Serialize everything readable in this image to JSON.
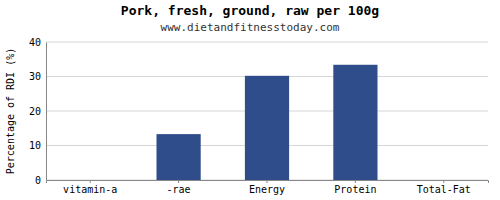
{
  "chart_data": {
    "type": "bar",
    "title": "Pork, fresh, ground, raw per 100g",
    "subtitle": "www.dietandfitnesstoday.com",
    "categories": [
      "vitamin-a",
      "-rae",
      "Energy",
      "Protein",
      "Total-Fat"
    ],
    "values": [
      0,
      13.3,
      30.2,
      33.4,
      0
    ],
    "color": "#2E4D8A",
    "ylabel": "Percentage of RDI (%)",
    "ylim": [
      0,
      40
    ],
    "yticks": [
      0,
      10,
      20,
      30,
      40
    ],
    "grid": true
  }
}
